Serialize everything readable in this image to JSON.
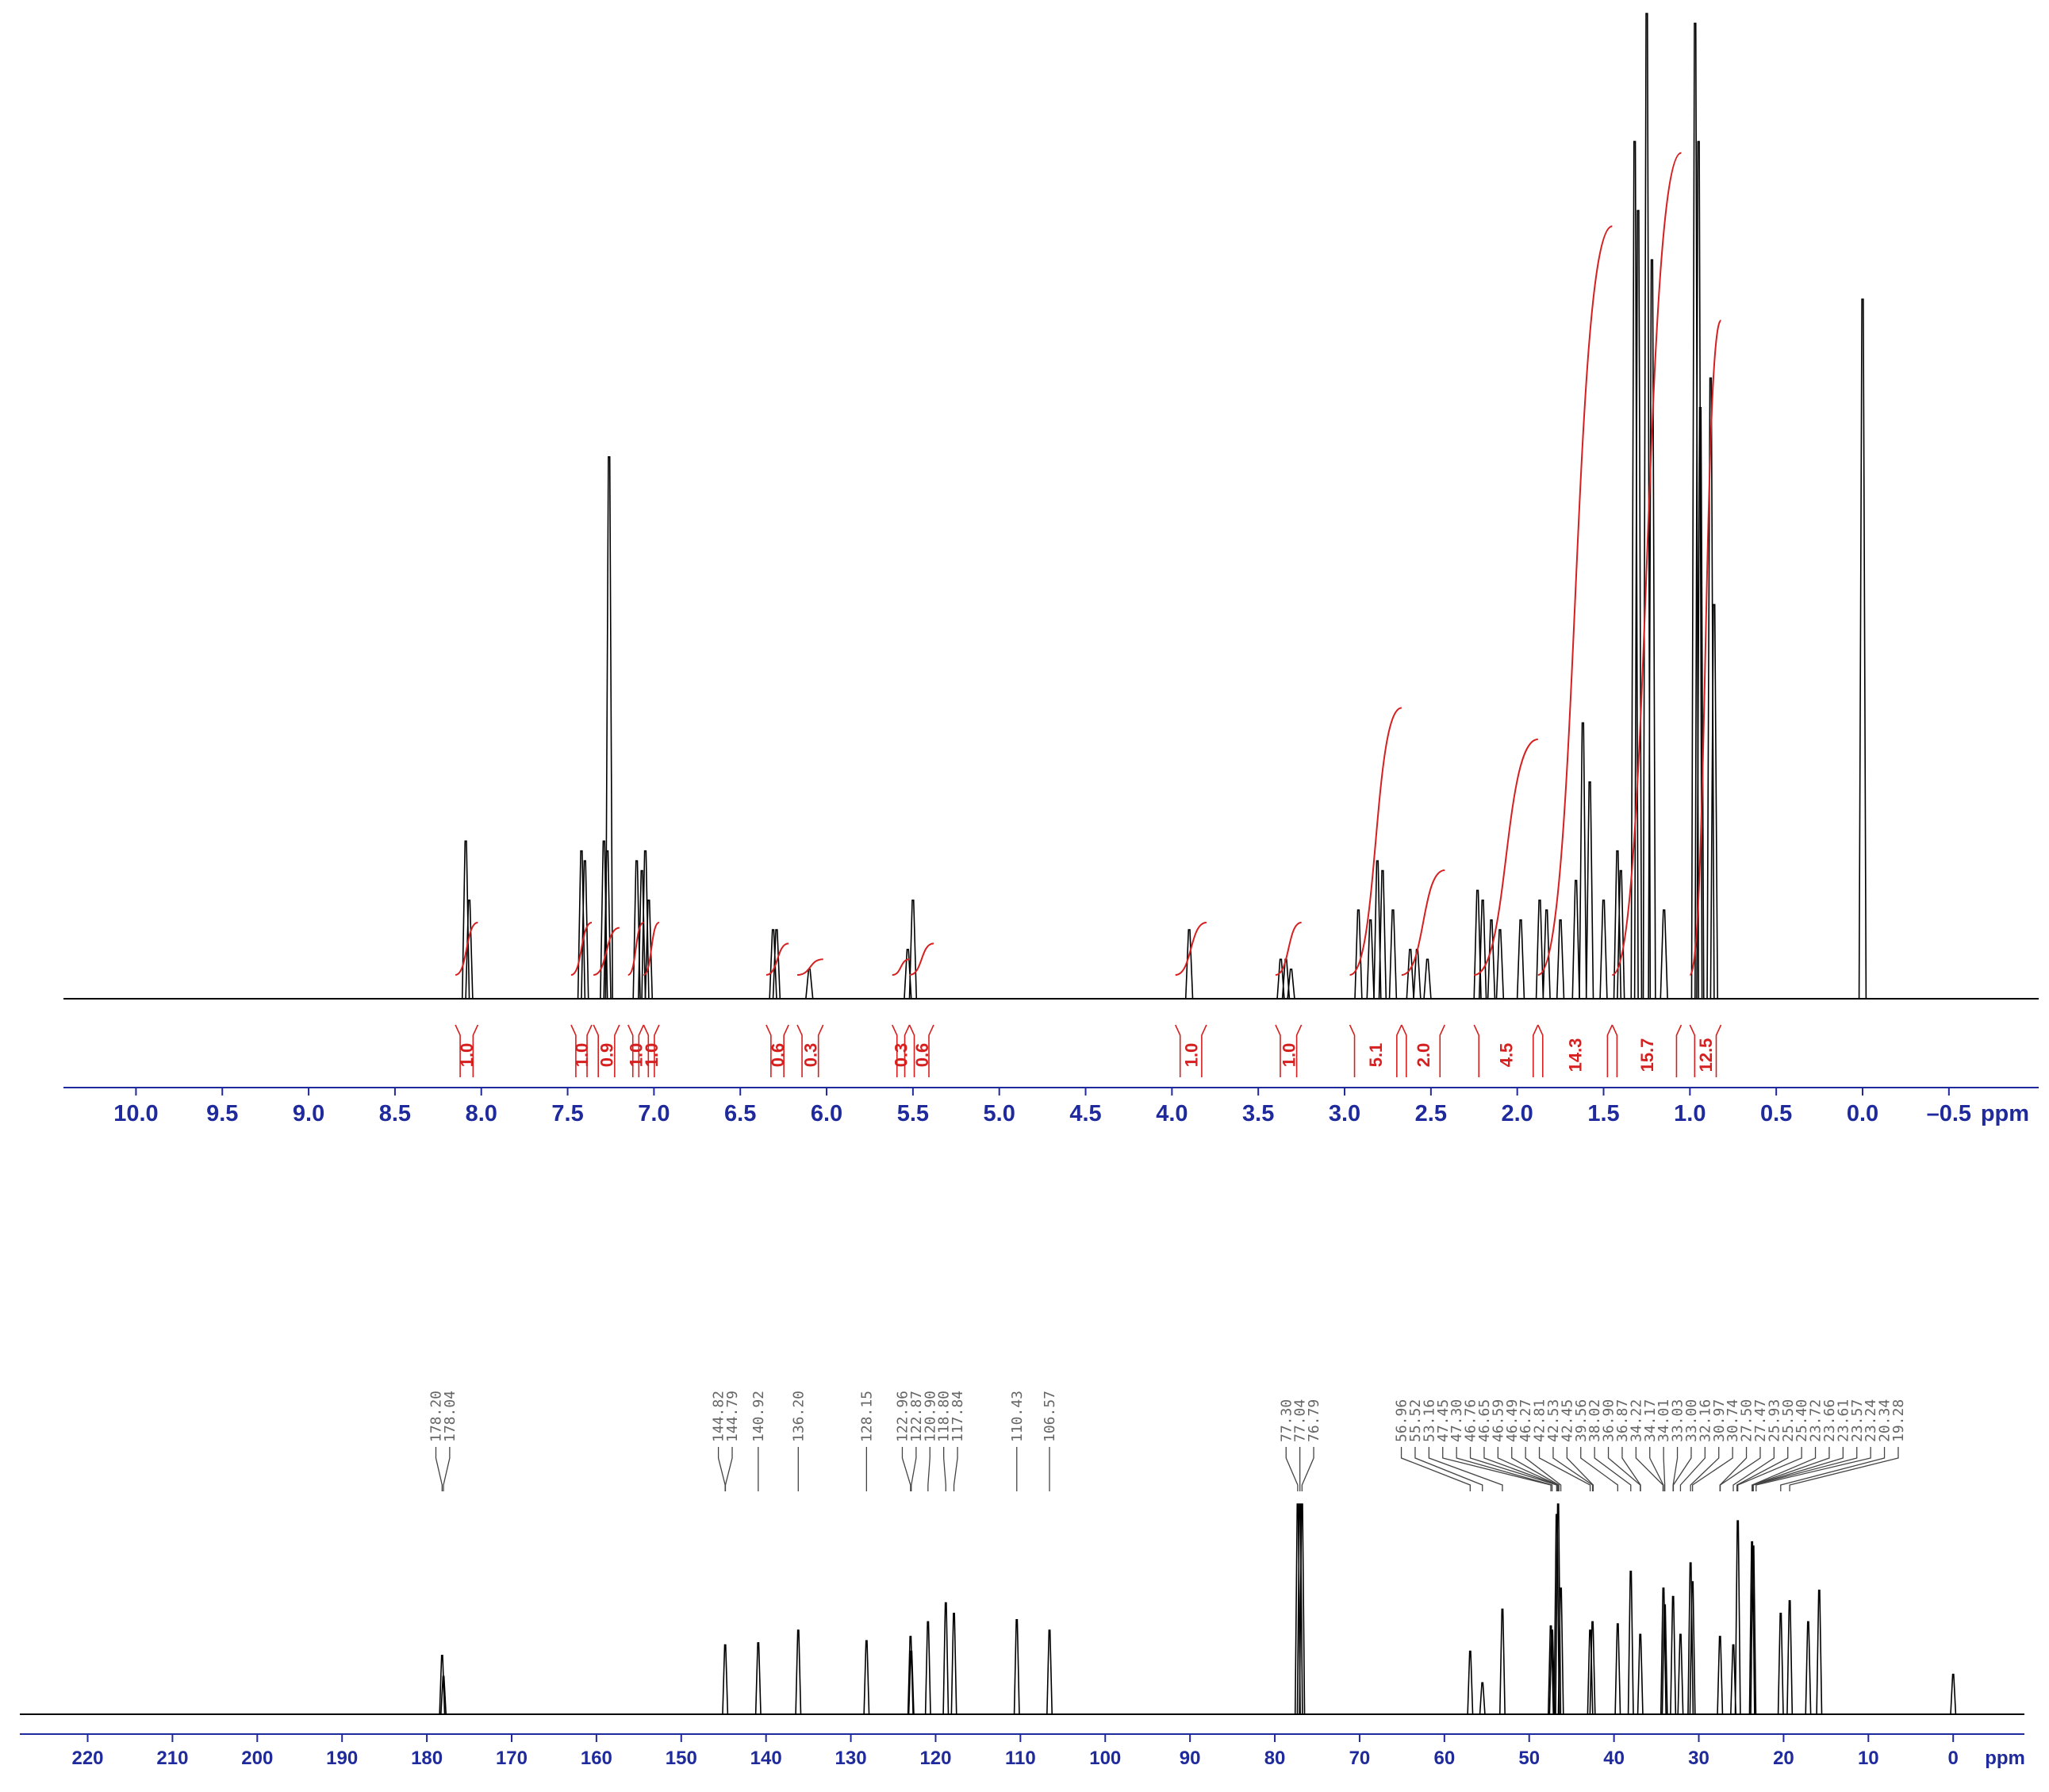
{
  "chart_data": [
    {
      "type": "spectrum",
      "xlabel": "ppm",
      "color": "#000000",
      "integral_color": "#d62020",
      "xlim": [
        10.42,
        -1.02
      ],
      "ylim": [
        0,
        100
      ],
      "xticks": [
        {
          "value": 10.0,
          "label": "10.0"
        },
        9.5,
        {
          "value": 9.0,
          "label": "9.0"
        },
        8.5,
        {
          "value": 8.0,
          "label": "8.0"
        },
        7.5,
        {
          "value": 7.0,
          "label": "7.0"
        },
        6.5,
        {
          "value": 6.0,
          "label": "6.0"
        },
        5.5,
        {
          "value": 5.0,
          "label": "5.0"
        },
        4.5,
        {
          "value": 4.0,
          "label": "4.0"
        },
        3.5,
        {
          "value": 3.0,
          "label": "3.0"
        },
        2.5,
        {
          "value": 2.0,
          "label": "2.0"
        },
        1.5,
        {
          "value": 1.0,
          "label": "1.0"
        },
        0.5,
        {
          "value": 0.0,
          "label": "0.0"
        },
        {
          "value": -0.5,
          "label": "–0.5"
        }
      ],
      "x": [
        8.09,
        8.07,
        7.42,
        7.4,
        7.29,
        7.27,
        7.26,
        7.1,
        7.07,
        7.05,
        7.03,
        6.31,
        6.29,
        6.1,
        5.53,
        5.5,
        3.9,
        3.37,
        3.34,
        3.31,
        2.92,
        2.85,
        2.81,
        2.78,
        2.72,
        2.62,
        2.58,
        2.52,
        2.23,
        2.2,
        2.15,
        2.1,
        1.98,
        1.87,
        1.83,
        1.75,
        1.66,
        1.62,
        1.58,
        1.5,
        1.42,
        1.4,
        1.32,
        1.3,
        1.25,
        1.22,
        1.15,
        0.97,
        0.95,
        0.94,
        0.88,
        0.86,
        0.0
      ],
      "values": [
        16,
        10,
        15,
        14,
        16,
        15,
        55,
        14,
        13,
        15,
        10,
        7,
        7,
        3,
        5,
        10,
        7,
        4,
        4,
        3,
        9,
        8,
        14,
        13,
        9,
        5,
        5,
        4,
        11,
        10,
        8,
        7,
        8,
        10,
        9,
        8,
        12,
        28,
        22,
        10,
        15,
        13,
        87,
        80,
        100,
        75,
        9,
        99,
        87,
        60,
        63,
        40,
        71
      ],
      "integrals": {
        "ranges": [
          [
            8.15,
            8.02
          ],
          [
            7.48,
            7.36
          ],
          [
            7.35,
            7.2
          ],
          [
            7.15,
            7.06
          ],
          [
            7.06,
            6.97
          ],
          [
            6.35,
            6.22
          ],
          [
            6.17,
            6.02
          ],
          [
            5.62,
            5.52
          ],
          [
            5.52,
            5.38
          ],
          [
            3.98,
            3.8
          ],
          [
            3.4,
            3.25
          ],
          [
            2.97,
            2.67
          ],
          [
            2.67,
            2.42
          ],
          [
            2.25,
            1.88
          ],
          [
            1.88,
            1.45
          ],
          [
            1.45,
            1.05
          ],
          [
            1.0,
            0.82
          ]
        ],
        "values": [
          1.0,
          1.0,
          0.9,
          1.0,
          1.0,
          0.6,
          0.3,
          0.3,
          0.6,
          1.0,
          1.0,
          5.1,
          2.0,
          4.5,
          14.3,
          15.7,
          12.5
        ],
        "value_labels": [
          "1.0",
          "1.0",
          "0.9",
          "1.0",
          "1.0",
          "0.6",
          "0.3",
          "0.3",
          "0.6",
          "1.0",
          "1.0",
          "5.1",
          "2.0",
          "4.5",
          "14.3",
          "15.7",
          "12.5"
        ]
      }
    },
    {
      "type": "spectrum",
      "xlabel": "ppm",
      "color": "#000000",
      "xlim": [
        228,
        -8.4
      ],
      "ylim": [
        0,
        100
      ],
      "xticks": [
        220,
        210,
        200,
        190,
        180,
        170,
        160,
        150,
        140,
        130,
        120,
        110,
        100,
        90,
        80,
        70,
        60,
        50,
        40,
        30,
        20,
        10,
        0
      ],
      "x": [
        178.2,
        178.04,
        144.82,
        140.92,
        136.2,
        128.15,
        122.96,
        122.87,
        120.9,
        118.8,
        117.84,
        110.43,
        106.57,
        77.3,
        77.04,
        76.79,
        56.96,
        55.52,
        53.16,
        47.45,
        47.3,
        46.76,
        46.59,
        46.27,
        42.81,
        42.53,
        39.56,
        38.02,
        36.9,
        34.17,
        34.01,
        33.03,
        32.16,
        30.97,
        30.74,
        27.5,
        25.93,
        25.4,
        23.72,
        23.57,
        20.34,
        19.28,
        17.1,
        15.8,
        0.0
      ],
      "values": [
        28,
        18,
        33,
        34,
        40,
        35,
        37,
        30,
        44,
        53,
        48,
        45,
        40,
        100,
        100,
        100,
        30,
        15,
        50,
        42,
        40,
        95,
        100,
        60,
        40,
        44,
        43,
        68,
        38,
        60,
        52,
        56,
        38,
        72,
        63,
        37,
        33,
        92,
        82,
        80,
        48,
        54,
        44,
        59,
        19
      ],
      "peak_labels": {
        "values": [
          178.2,
          178.04,
          144.82,
          144.79,
          140.92,
          136.2,
          128.15,
          122.96,
          122.87,
          120.9,
          118.8,
          117.84,
          110.43,
          106.57,
          77.3,
          77.04,
          76.79,
          56.96,
          55.52,
          53.16,
          47.45,
          47.3,
          46.76,
          46.65,
          46.59,
          46.49,
          46.27,
          42.81,
          42.53,
          42.45,
          39.56,
          38.02,
          36.9,
          36.87,
          34.22,
          34.17,
          34.01,
          33.03,
          33.0,
          32.16,
          30.97,
          30.74,
          27.5,
          27.47,
          25.93,
          25.5,
          25.4,
          23.72,
          23.66,
          23.61,
          23.57,
          23.24,
          20.34,
          19.28
        ],
        "value_labels": [
          "178.20",
          "178.04",
          "144.82",
          "144.79",
          "140.92",
          "136.20",
          "128.15",
          "122.96",
          "122.87",
          "120.90",
          "118.80",
          "117.84",
          "110.43",
          "106.57",
          "77.30",
          "77.04",
          "76.79",
          "56.96",
          "55.52",
          "53.16",
          "47.45",
          "47.30",
          "46.76",
          "46.65",
          "46.59",
          "46.49",
          "46.27",
          "42.81",
          "42.53",
          "42.45",
          "39.56",
          "38.02",
          "36.90",
          "36.87",
          "34.22",
          "34.17",
          "34.01",
          "33.03",
          "33.00",
          "32.16",
          "30.97",
          "30.74",
          "27.50",
          "27.47",
          "25.93",
          "25.50",
          "25.40",
          "23.72",
          "23.66",
          "23.61",
          "23.57",
          "23.24",
          "20.34",
          "19.28"
        ]
      }
    }
  ]
}
